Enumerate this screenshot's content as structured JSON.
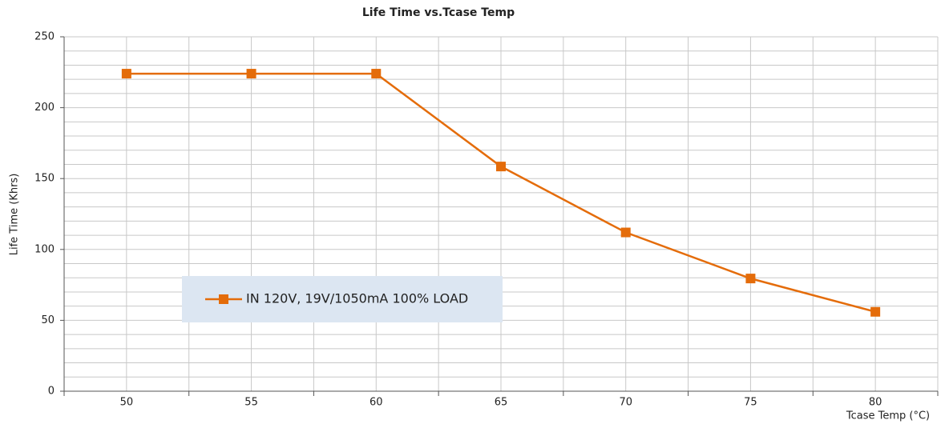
{
  "chart_data": {
    "type": "line",
    "title": "Life Time vs.Tcase Temp",
    "x_label": "Tcase Temp (°C)",
    "y_label": "Life Time (Khrs)",
    "categories": [
      "50",
      "55",
      "60",
      "65",
      "70",
      "75",
      "80"
    ],
    "series": [
      {
        "name": "IN 120V, 19V/1050mA 100% LOAD",
        "color": "#e46c0a",
        "values": [
          224,
          224,
          224,
          158.5,
          112,
          79.5,
          56
        ]
      }
    ],
    "ylim": [
      0,
      250
    ],
    "yticks": [
      0,
      50,
      100,
      150,
      200,
      250
    ],
    "grid": true
  }
}
